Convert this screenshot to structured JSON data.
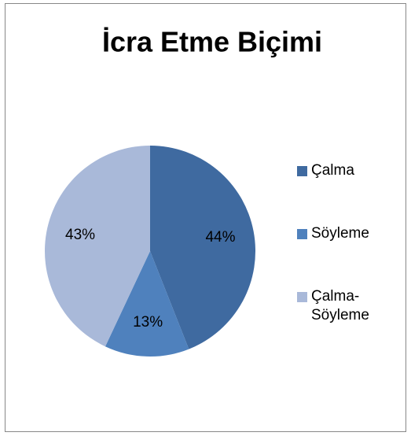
{
  "chart_data": {
    "type": "pie",
    "title": "İcra Etme Biçimi",
    "categories": [
      "Çalma",
      "Söyleme",
      "Çalma-Söyleme"
    ],
    "values": [
      44,
      13,
      43
    ],
    "value_labels": [
      "44%",
      "13%",
      "43%"
    ],
    "colors": [
      "#3f6aa0",
      "#4f81bd",
      "#a9b9d9"
    ],
    "legend": "right"
  }
}
